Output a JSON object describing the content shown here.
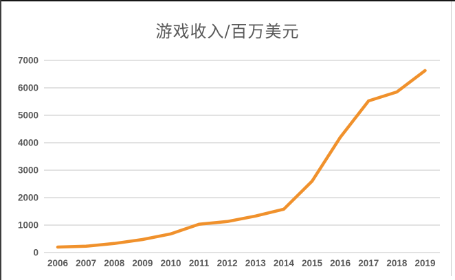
{
  "window": {
    "title": "游戏收入/百万美元"
  },
  "chart_data": {
    "type": "line",
    "title": "游戏收入/百万美元",
    "categories": [
      "2006",
      "2007",
      "2008",
      "2009",
      "2010",
      "2011",
      "2012",
      "2013",
      "2014",
      "2015",
      "2016",
      "2017",
      "2018",
      "2019"
    ],
    "series": [
      {
        "name": "游戏收入",
        "values": [
          200,
          230,
          330,
          475,
          680,
          1030,
          1130,
          1330,
          1580,
          2600,
          4200,
          5525,
          5850,
          6630
        ]
      }
    ],
    "xlabel": "",
    "ylabel": "",
    "ylim": [
      0,
      7000
    ],
    "yticks": [
      0,
      1000,
      2000,
      3000,
      4000,
      5000,
      6000,
      7000
    ],
    "grid": true,
    "legend_position": "none",
    "colors": {
      "line": "#F0912C",
      "grid": "#D9D9D9",
      "tick_label": "#595959",
      "title": "#595959"
    }
  }
}
